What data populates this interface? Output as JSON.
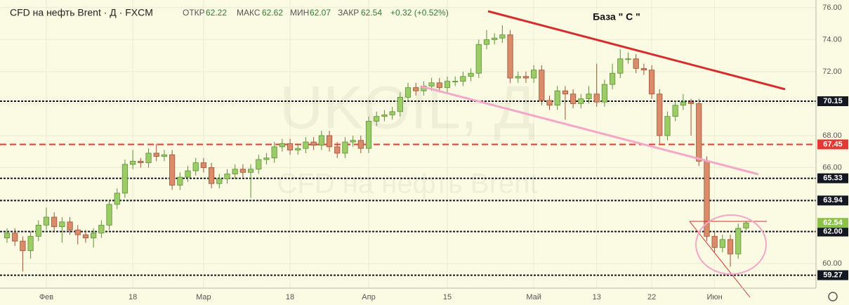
{
  "chart_data": {
    "type": "candlestick",
    "title": "CFD на нефть Brent · Д · FXCM",
    "watermark": "UKOIL, Д",
    "watermark_subtitle": "CFD на нефть Brent",
    "ohlc_labels": [
      "ОТКР",
      "МАКС",
      "МИН",
      "ЗАКР"
    ],
    "change": "+0.32 (+0.52%)",
    "annotation": "База  \" С \"",
    "up_color": "#9ccc65",
    "down_color": "#d98b6a",
    "categories": [
      null,
      null,
      null,
      null,
      null,
      "Фев",
      null,
      null,
      null,
      null,
      null,
      null,
      null,
      null,
      null,
      null,
      "18",
      null,
      null,
      null,
      null,
      null,
      null,
      null,
      null,
      "Мар",
      null,
      null,
      null,
      null,
      null,
      null,
      null,
      null,
      null,
      null,
      "18",
      null,
      null,
      null,
      null,
      null,
      null,
      null,
      null,
      null,
      "Апр",
      null,
      null,
      null,
      null,
      null,
      null,
      null,
      null,
      null,
      "15",
      null,
      null,
      null,
      null,
      null,
      null,
      null,
      null,
      null,
      null,
      "Май",
      null,
      null,
      null,
      null,
      null,
      null,
      null,
      "13",
      null,
      null,
      null,
      null,
      null,
      null,
      "22",
      null,
      null,
      null,
      null,
      null,
      null,
      null,
      "Июн",
      null,
      null,
      null,
      null
    ],
    "open": [
      61.6,
      61.9,
      61.4,
      60.8,
      61.7,
      62.4,
      62.9,
      62.3,
      62.6,
      62.1,
      61.8,
      61.6,
      61.9,
      62.4,
      63.7,
      64.4,
      66.2,
      66.4,
      66.3,
      66.9,
      66.7,
      66.8,
      64.9,
      65.4,
      65.8,
      66.3,
      66.0,
      65.0,
      65.3,
      65.6,
      65.9,
      65.7,
      65.9,
      66.5,
      66.6,
      67.3,
      67.5,
      67.1,
      67.2,
      67.6,
      67.4,
      68.0,
      67.3,
      66.9,
      67.6,
      67.7,
      67.2,
      68.9,
      69.2,
      69.3,
      69.5,
      70.4,
      71.0,
      70.8,
      71.1,
      71.3,
      71.0,
      71.4,
      71.4,
      71.7,
      71.9,
      73.7,
      74.0,
      74.1,
      74.3,
      71.6,
      71.7,
      71.6,
      72.1,
      70.2,
      69.9,
      70.8,
      70.6,
      70.0,
      70.3,
      70.6,
      70.1,
      71.2,
      71.9,
      72.8,
      72.8,
      72.2,
      72.1,
      70.6,
      68.0,
      69.2,
      69.9,
      70.1,
      70.0,
      66.4,
      61.7,
      61.0,
      61.5,
      60.6,
      62.22
    ],
    "high": [
      62.2,
      62.2,
      61.7,
      62.0,
      62.7,
      63.5,
      63.2,
      62.9,
      62.9,
      62.4,
      62.1,
      62.2,
      62.7,
      64.0,
      64.7,
      66.5,
      67.1,
      66.6,
      67.2,
      67.5,
      67.1,
      67.1,
      65.7,
      66.1,
      66.6,
      66.6,
      66.3,
      65.6,
      65.9,
      66.2,
      66.2,
      66.2,
      66.8,
      66.9,
      67.6,
      67.8,
      67.8,
      67.5,
      67.9,
      67.9,
      68.3,
      68.3,
      67.6,
      67.9,
      68.0,
      68.0,
      69.2,
      69.5,
      69.6,
      69.8,
      70.7,
      71.3,
      71.3,
      71.4,
      71.6,
      71.6,
      71.7,
      71.7,
      72.0,
      72.2,
      74.0,
      74.6,
      74.4,
      74.9,
      74.6,
      72.0,
      72.0,
      72.4,
      72.4,
      70.5,
      71.1,
      71.1,
      70.9,
      70.6,
      71.1,
      72.5,
      71.5,
      72.5,
      73.4,
      73.2,
      73.1,
      72.5,
      72.4,
      70.9,
      69.5,
      70.2,
      70.6,
      70.3,
      70.3,
      66.7,
      62.0,
      61.8,
      61.8,
      62.5,
      62.62
    ],
    "low": [
      61.3,
      61.1,
      59.5,
      60.3,
      61.4,
      62.1,
      62.0,
      61.3,
      61.8,
      61.2,
      61.3,
      61.0,
      61.6,
      62.1,
      63.4,
      64.1,
      65.9,
      66.0,
      66.0,
      66.4,
      66.4,
      64.6,
      64.6,
      65.1,
      65.5,
      65.7,
      64.7,
      64.7,
      65.0,
      65.3,
      65.4,
      64.1,
      65.6,
      66.2,
      66.3,
      67.0,
      66.8,
      66.8,
      66.9,
      67.1,
      67.1,
      67.0,
      66.6,
      66.6,
      67.3,
      66.9,
      66.9,
      68.6,
      68.9,
      69.0,
      69.2,
      70.1,
      70.5,
      70.5,
      70.8,
      70.7,
      70.7,
      71.1,
      71.1,
      71.4,
      71.6,
      73.4,
      73.7,
      73.8,
      71.3,
      71.3,
      71.3,
      71.3,
      69.9,
      69.6,
      69.6,
      69.0,
      69.7,
      69.7,
      70.0,
      69.8,
      69.8,
      70.9,
      71.6,
      72.5,
      71.9,
      71.8,
      70.3,
      67.5,
      67.7,
      68.9,
      69.6,
      68.0,
      66.1,
      61.4,
      60.7,
      60.7,
      59.8,
      60.3,
      62.07
    ],
    "close": [
      61.9,
      61.4,
      60.8,
      61.7,
      62.4,
      62.9,
      62.3,
      62.6,
      62.1,
      61.8,
      61.6,
      61.9,
      62.4,
      63.7,
      64.4,
      66.2,
      66.4,
      66.3,
      66.9,
      66.7,
      66.8,
      64.9,
      65.4,
      65.8,
      66.3,
      66.0,
      65.0,
      65.3,
      65.6,
      65.9,
      65.7,
      65.9,
      66.5,
      66.6,
      67.3,
      67.5,
      67.1,
      67.2,
      67.6,
      67.4,
      68.0,
      67.3,
      66.9,
      67.6,
      67.7,
      67.2,
      68.9,
      69.2,
      69.3,
      69.5,
      70.4,
      71.0,
      70.8,
      71.1,
      71.3,
      71.0,
      71.4,
      71.4,
      71.7,
      71.9,
      73.7,
      74.0,
      74.1,
      74.3,
      71.6,
      71.7,
      71.6,
      72.1,
      70.2,
      69.9,
      70.8,
      70.6,
      70.0,
      70.3,
      70.6,
      70.1,
      71.2,
      71.9,
      72.8,
      72.8,
      72.2,
      72.1,
      70.6,
      68.0,
      69.2,
      69.9,
      70.1,
      70.0,
      66.4,
      61.7,
      61.0,
      61.5,
      60.6,
      62.2,
      62.54
    ],
    "ylim": [
      58.46,
      76.48
    ],
    "yticks": [
      {
        "value": 60,
        "label": "60.00"
      },
      {
        "value": 62,
        "label": "62.00"
      },
      {
        "value": 64,
        "label": "64.00"
      },
      {
        "value": 66,
        "label": "66.00"
      },
      {
        "value": 68,
        "label": "68.00"
      },
      {
        "value": 70,
        "label": "70.00"
      },
      {
        "value": 72,
        "label": "72.00"
      },
      {
        "value": 74,
        "label": "74.00"
      },
      {
        "value": 76,
        "label": "76.00"
      }
    ],
    "grid": true,
    "levels": [
      {
        "value": 70.15,
        "label": "70.15",
        "color": "#131722",
        "style": "dotted"
      },
      {
        "value": 67.45,
        "label": "67.45",
        "color": "#e53935",
        "style": "dashed"
      },
      {
        "value": 65.33,
        "label": "65.33",
        "color": "#131722",
        "style": "dotted"
      },
      {
        "value": 63.94,
        "label": "63.94",
        "color": "#131722",
        "style": "dotted"
      },
      {
        "value": 62,
        "label": "62.00",
        "color": "#131722",
        "style": "dotted"
      },
      {
        "value": 59.27,
        "label": "59.27",
        "color": "#131722",
        "style": "dotted"
      }
    ],
    "last_price_color": "#8bc34a"
  }
}
